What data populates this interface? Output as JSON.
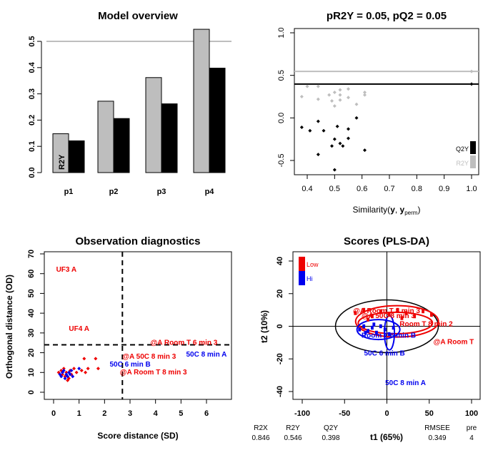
{
  "chart_data": [
    {
      "type": "bar",
      "title": "Model overview",
      "categories": [
        "p1",
        "p2",
        "p3",
        "p4"
      ],
      "series": [
        {
          "name": "R2Y",
          "values": [
            0.148,
            0.272,
            0.362,
            0.546
          ],
          "color": "#bebebe"
        },
        {
          "name": "Q2Y",
          "values": [
            0.121,
            0.206,
            0.262,
            0.398
          ],
          "color": "#000000"
        }
      ],
      "ylim": [
        0,
        0.55
      ],
      "yticks": [
        "0.0",
        "0.1",
        "0.2",
        "0.3",
        "0.4",
        "0.5"
      ],
      "reference_line": 0.5,
      "bar_labels": [
        "R2Y",
        "Q2Y"
      ]
    },
    {
      "type": "scatter",
      "title": "pR2Y = 0.05, pQ2 = 0.05",
      "xlabel": "Similarity(y, y_perm)",
      "xlim": [
        0.35,
        1.02
      ],
      "ylim": [
        -0.63,
        1.1
      ],
      "xticks": [
        "0.4",
        "0.5",
        "0.6",
        "0.7",
        "0.8",
        "0.9",
        "1.0"
      ],
      "yticks": [
        "-0.5",
        "0.0",
        "0.5",
        "1.0"
      ],
      "hlines": [
        {
          "y": 0.546,
          "color": "#bebebe"
        },
        {
          "y": 0.398,
          "color": "#000000"
        }
      ],
      "series": [
        {
          "name": "R2Y",
          "color": "#bebebe",
          "x": [
            0.38,
            0.4,
            0.44,
            0.44,
            0.48,
            0.49,
            0.5,
            0.5,
            0.52,
            0.52,
            0.52,
            0.55,
            0.55,
            0.58,
            0.61,
            0.61,
            1.0
          ],
          "y": [
            0.25,
            0.37,
            0.37,
            0.22,
            0.27,
            0.2,
            0.3,
            0.14,
            0.33,
            0.27,
            0.21,
            0.34,
            0.24,
            0.16,
            0.3,
            0.27,
            0.546
          ]
        },
        {
          "name": "Q2Y",
          "color": "#000000",
          "x": [
            0.38,
            0.41,
            0.44,
            0.44,
            0.46,
            0.49,
            0.5,
            0.5,
            0.51,
            0.52,
            0.53,
            0.55,
            0.55,
            0.58,
            0.61,
            1.0
          ],
          "y": [
            -0.11,
            -0.15,
            -0.43,
            -0.04,
            -0.15,
            -0.33,
            -0.61,
            -0.25,
            -0.1,
            -0.3,
            -0.33,
            -0.13,
            -0.24,
            0.0,
            -0.38,
            0.398
          ]
        }
      ],
      "legend": [
        "Q2Y",
        "R2Y"
      ]
    },
    {
      "type": "scatter",
      "title": "Observation diagnostics",
      "xlabel": "Score distance (SD)",
      "ylabel": "Orthogonal distance (OD)",
      "xlim": [
        0,
        7
      ],
      "ylim": [
        0,
        70
      ],
      "xticks": [
        "0",
        "1",
        "2",
        "3",
        "4",
        "5",
        "6"
      ],
      "yticks": [
        "0",
        "10",
        "20",
        "30",
        "40",
        "50",
        "60",
        "70"
      ],
      "cutoffs": {
        "sd": 2.7,
        "od": 24
      },
      "series": [
        {
          "name": "Low",
          "color": "#ee0000",
          "x": [
            0.2,
            0.3,
            0.35,
            0.4,
            0.45,
            0.5,
            0.55,
            0.6,
            0.65,
            0.7,
            0.8,
            0.9,
            1.1,
            1.2,
            1.25,
            1.35,
            1.65,
            1.75
          ],
          "y": [
            10,
            11,
            9,
            12,
            8,
            10,
            6,
            7,
            11,
            9,
            12,
            10,
            11,
            17,
            10,
            12,
            17,
            12
          ]
        },
        {
          "name": "Hi",
          "color": "#0000ee",
          "x": [
            0.25,
            0.3,
            0.35,
            0.4,
            0.45,
            0.5,
            0.55,
            0.6,
            0.65,
            0.7,
            0.75,
            1.0
          ],
          "y": [
            9,
            8,
            10,
            11,
            7,
            9,
            8,
            10,
            9,
            11,
            8,
            12
          ]
        }
      ],
      "labels": [
        {
          "text": "UF3 A",
          "x": 0.1,
          "y": 61,
          "color": "#ee0000"
        },
        {
          "text": "UF4 A",
          "x": 0.6,
          "y": 31,
          "color": "#ee0000"
        },
        {
          "text": "@A Room T 6 min 3",
          "x": 3.8,
          "y": 24,
          "color": "#ee0000"
        },
        {
          "text": "50C 8 min A",
          "x": 5.2,
          "y": 18,
          "color": "#0000ee"
        },
        {
          "text": "@A 50C 8 min 3",
          "x": 2.7,
          "y": 17,
          "color": "#ee0000"
        },
        {
          "text": "50C 6 min B",
          "x": 2.2,
          "y": 13,
          "color": "#0000ee"
        },
        {
          "text": "@A Room T 8 min 3",
          "x": 2.6,
          "y": 9,
          "color": "#ee0000"
        }
      ]
    },
    {
      "type": "scatter",
      "title": "Scores (PLS-DA)",
      "xlabel": "t1 (65%)",
      "ylabel": "t2 (10%)",
      "xlim": [
        -105,
        105
      ],
      "ylim": [
        -44,
        44
      ],
      "xticks": [
        "-100",
        "-50",
        "0",
        "50",
        "100"
      ],
      "yticks": [
        "-40",
        "-20",
        "0",
        "20",
        "40"
      ],
      "legend": [
        {
          "name": "Low",
          "color": "#ee0000"
        },
        {
          "name": "Hi",
          "color": "#0000ee"
        }
      ],
      "labels": [
        {
          "text": "@A Room T 8 min 3",
          "x": -40,
          "y": 8,
          "color": "#ee0000"
        },
        {
          "text": "@A 50C 8 min 3",
          "x": -30,
          "y": 5,
          "color": "#ee0000"
        },
        {
          "text": "Room T 8 min 2",
          "x": 15,
          "y": 0,
          "color": "#ee0000"
        },
        {
          "text": "@A Room T",
          "x": 55,
          "y": -11,
          "color": "#ee0000"
        },
        {
          "text": "Room T 6 min B",
          "x": -30,
          "y": -7,
          "color": "#0000ee"
        },
        {
          "text": "50C 6 min B",
          "x": -27,
          "y": -18,
          "color": "#0000ee"
        },
        {
          "text": "50C 8 min A",
          "x": -2,
          "y": -36,
          "color": "#0000ee"
        }
      ],
      "stats": {
        "headers": [
          "R2X",
          "R2Y",
          "Q2Y",
          "RMSEE",
          "pre"
        ],
        "values": [
          "0.846",
          "0.546",
          "0.398",
          "0.349",
          "4"
        ]
      }
    }
  ]
}
